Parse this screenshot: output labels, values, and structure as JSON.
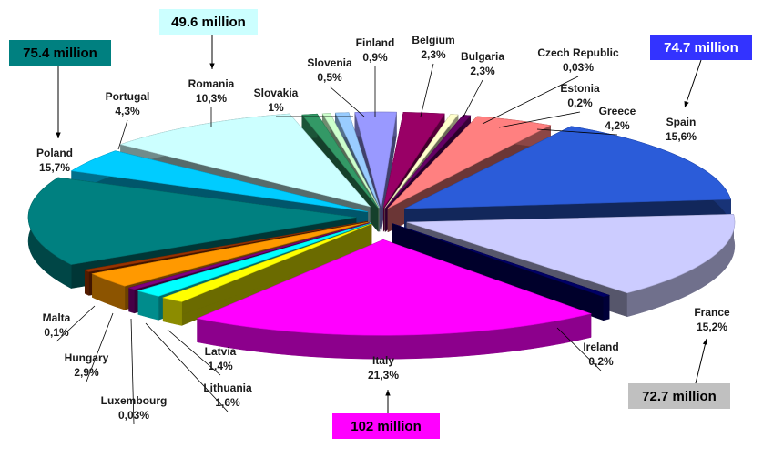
{
  "chart_data": {
    "type": "pie",
    "title": "",
    "three_d": true,
    "exploded": true,
    "slices": [
      {
        "name": "Belgium",
        "value_label": "2,3%",
        "value": 2.3,
        "color": "#9999ff"
      },
      {
        "name": "Bulgaria",
        "value_label": "2,3%",
        "value": 2.3,
        "color": "#990066"
      },
      {
        "name": "Czech Republic",
        "value_label": "0,03%",
        "value": 0.03,
        "color": "#ffffcc"
      },
      {
        "name": "Estonia",
        "value_label": "0,2%",
        "value": 0.2,
        "color": "#660066"
      },
      {
        "name": "Greece",
        "value_label": "4,2%",
        "value": 4.2,
        "color": "#ff8080"
      },
      {
        "name": "Spain",
        "value_label": "15,6%",
        "value": 15.6,
        "color": "#2b5cd9"
      },
      {
        "name": "France",
        "value_label": "15,2%",
        "value": 15.2,
        "color": "#ccccff"
      },
      {
        "name": "Ireland",
        "value_label": "0,2%",
        "value": 0.2,
        "color": "#000066"
      },
      {
        "name": "Italy",
        "value_label": "21,3%",
        "value": 21.3,
        "color": "#ff00ff"
      },
      {
        "name": "Latvia",
        "value_label": "1,4%",
        "value": 1.4,
        "color": "#ffff00"
      },
      {
        "name": "Lithuania",
        "value_label": "1,6%",
        "value": 1.6,
        "color": "#00ffff"
      },
      {
        "name": "Luxembourg",
        "value_label": "0,03%",
        "value": 0.03,
        "color": "#800080"
      },
      {
        "name": "Hungary",
        "value_label": "2,9%",
        "value": 2.9,
        "color": "#ff9900"
      },
      {
        "name": "Malta",
        "value_label": "0,1%",
        "value": 0.1,
        "color": "#993300"
      },
      {
        "name": "Poland",
        "value_label": "15,7%",
        "value": 15.7,
        "color": "#008080"
      },
      {
        "name": "Portugal",
        "value_label": "4,3%",
        "value": 4.3,
        "color": "#00ccff"
      },
      {
        "name": "Romania",
        "value_label": "10,3%",
        "value": 10.3,
        "color": "#ccffff"
      },
      {
        "name": "Slovakia",
        "value_label": "1%",
        "value": 1.0,
        "color": "#339966"
      },
      {
        "name": "Slovenia",
        "value_label": "0,5%",
        "value": 0.5,
        "color": "#ccffcc"
      },
      {
        "name": "Finland",
        "value_label": "0,9%",
        "value": 0.9,
        "color": "#99ccff"
      }
    ],
    "callouts": [
      {
        "text": "49.6 million",
        "slice": "Romania",
        "bg": "#ccffff",
        "fg": "#000000"
      },
      {
        "text": "75.4 million",
        "slice": "Poland",
        "bg": "#008080",
        "fg": "#000000"
      },
      {
        "text": "74.7 million",
        "slice": "Spain",
        "bg": "#3333ff",
        "fg": "#ffffff"
      },
      {
        "text": "72.7 million",
        "slice": "France",
        "bg": "#c0c0c0",
        "fg": "#000000"
      },
      {
        "text": "102 million",
        "slice": "Italy",
        "bg": "#ff00ff",
        "fg": "#000000"
      }
    ]
  }
}
